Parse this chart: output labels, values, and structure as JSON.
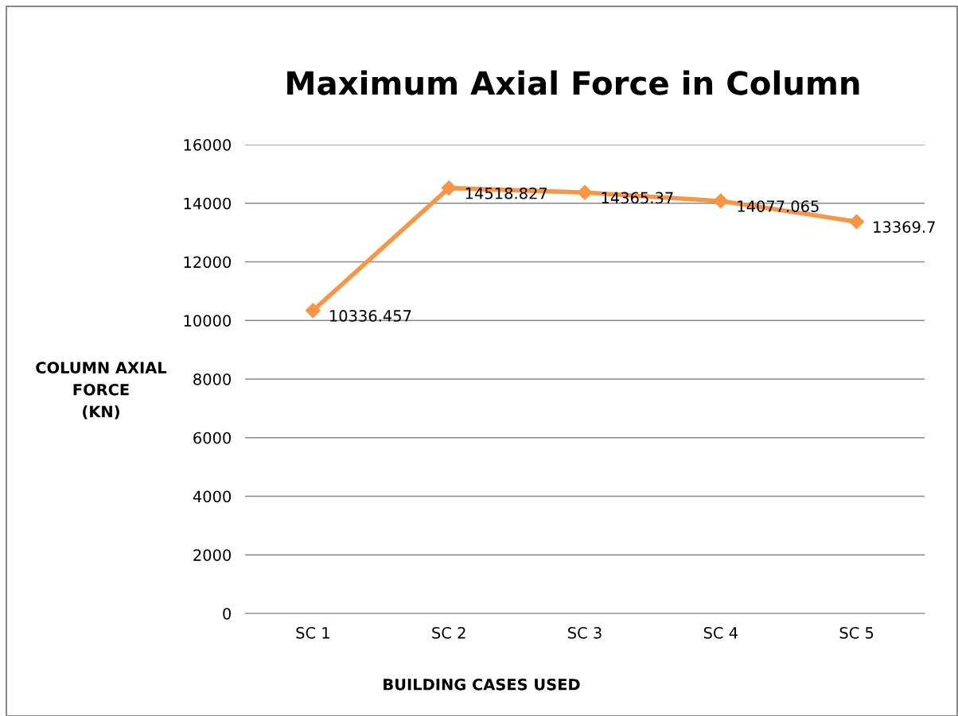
{
  "chart_data": {
    "type": "line",
    "title": "Maximum Axial Force in Column",
    "xlabel": "BUILDING CASES USED",
    "ylabel": "COLUMN AXIAL\nFORCE\n(KN)",
    "categories": [
      "SC 1",
      "SC 2",
      "SC 3",
      "SC 4",
      "SC 5"
    ],
    "series": [
      {
        "color": "#f79646",
        "values": [
          10336.457,
          14518.827,
          14365.37,
          14077.065,
          13369.7
        ]
      }
    ],
    "ylim": [
      0,
      16000
    ],
    "yticks": [
      0,
      2000,
      4000,
      6000,
      8000,
      10000,
      12000,
      14000,
      16000
    ],
    "grid": "y",
    "legend": false,
    "marker": "diamond",
    "line_style": "solid",
    "data_labels": true
  }
}
